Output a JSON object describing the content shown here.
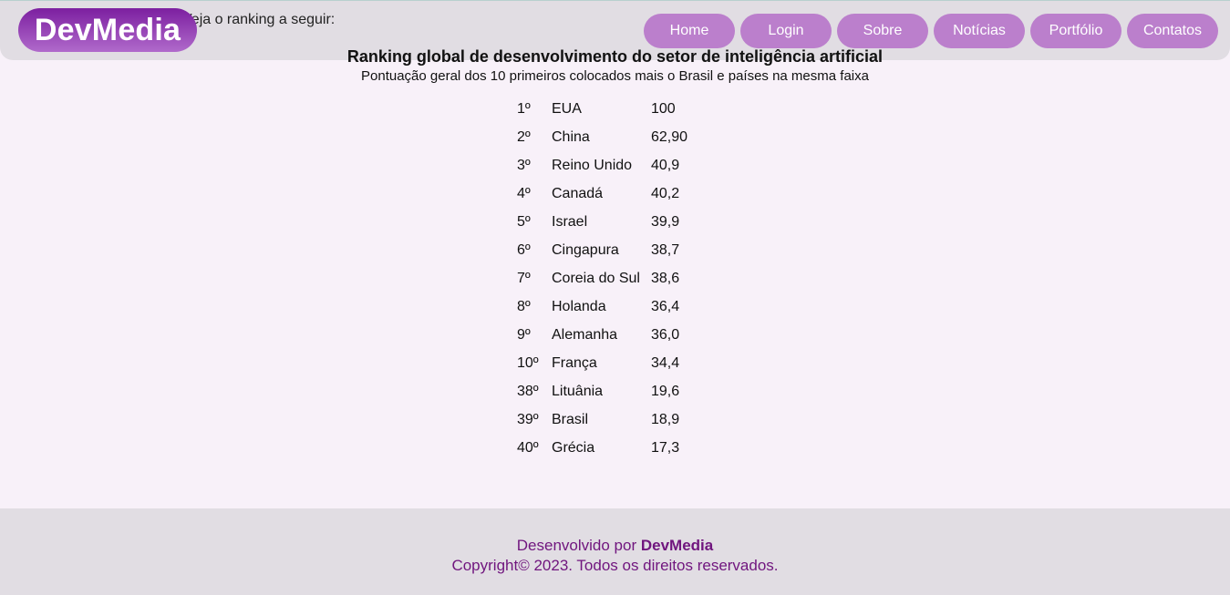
{
  "header": {
    "logo": "DevMedia",
    "intro_text": "Veja o ranking a seguir:",
    "nav": [
      "Home",
      "Login",
      "Sobre",
      "Notícias",
      "Portfólio",
      "Contatos"
    ]
  },
  "ranking": {
    "title": "Ranking global de desenvolvimento do setor de inteligência artificial",
    "subtitle": "Pontuação geral dos 10 primeiros colocados mais o Brasil e países na mesma faixa",
    "rows": [
      {
        "pos": "1º",
        "country": "EUA",
        "score": "100"
      },
      {
        "pos": "2º",
        "country": "China",
        "score": "62,90"
      },
      {
        "pos": "3º",
        "country": "Reino Unido",
        "score": "40,9"
      },
      {
        "pos": "4º",
        "country": "Canadá",
        "score": "40,2"
      },
      {
        "pos": "5º",
        "country": "Israel",
        "score": "39,9"
      },
      {
        "pos": "6º",
        "country": "Cingapura",
        "score": "38,7"
      },
      {
        "pos": "7º",
        "country": "Coreia do Sul",
        "score": "38,6"
      },
      {
        "pos": "8º",
        "country": "Holanda",
        "score": "36,4"
      },
      {
        "pos": "9º",
        "country": "Alemanha",
        "score": "36,0"
      },
      {
        "pos": "10º",
        "country": "França",
        "score": "34,4"
      },
      {
        "pos": "38º",
        "country": "Lituânia",
        "score": "19,6"
      },
      {
        "pos": "39º",
        "country": "Brasil",
        "score": "18,9"
      },
      {
        "pos": "40º",
        "country": "Grécia",
        "score": "17,3"
      }
    ]
  },
  "footer": {
    "developed_by": "Desenvolvido por ",
    "brand": "DevMedia",
    "copyright": "Copyright© 2023. Todos os direitos reservados."
  },
  "colors": {
    "accent": "#bb7fcc",
    "brand": "#7c1fa0",
    "header_bg": "#e1dde3",
    "page_bg": "#f8f1f9"
  }
}
